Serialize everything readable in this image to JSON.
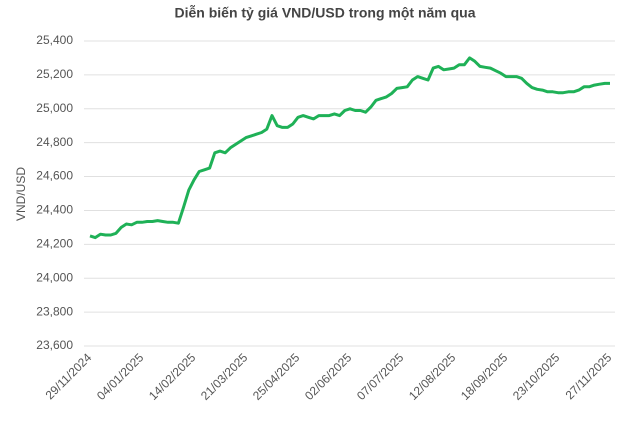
{
  "chart_data": {
    "type": "line",
    "title": "Diễn biến tỷ giá VND/USD trong một năm qua",
    "ylabel": "VND/USD",
    "categories": [
      "29/11/2024",
      null,
      null,
      null,
      null,
      null,
      null,
      null,
      null,
      null,
      "04/01/2025",
      null,
      null,
      null,
      null,
      null,
      null,
      null,
      null,
      null,
      "14/02/2025",
      null,
      null,
      null,
      null,
      null,
      null,
      null,
      null,
      null,
      "21/03/2025",
      null,
      null,
      null,
      null,
      null,
      null,
      null,
      null,
      null,
      "25/04/2025",
      null,
      null,
      null,
      null,
      null,
      null,
      null,
      null,
      null,
      "02/06/2025",
      null,
      null,
      null,
      null,
      null,
      null,
      null,
      null,
      null,
      "07/07/2025",
      null,
      null,
      null,
      null,
      null,
      null,
      null,
      null,
      null,
      "12/08/2025",
      null,
      null,
      null,
      null,
      null,
      null,
      null,
      null,
      null,
      "18/09/2025",
      null,
      null,
      null,
      null,
      null,
      null,
      null,
      null,
      null,
      "23/10/2025",
      null,
      null,
      null,
      null,
      null,
      null,
      null,
      null,
      null,
      "27/11/2025"
    ],
    "values": [
      24250,
      24240,
      24260,
      24255,
      24255,
      24265,
      24300,
      24320,
      24315,
      24330,
      24330,
      24335,
      24335,
      24340,
      24335,
      24330,
      24330,
      24325,
      24420,
      24520,
      24580,
      24630,
      24640,
      24650,
      24740,
      24750,
      24740,
      24770,
      24790,
      24810,
      24830,
      24840,
      24850,
      24860,
      24880,
      24960,
      24900,
      24890,
      24890,
      24910,
      24950,
      24960,
      24950,
      24940,
      24960,
      24960,
      24960,
      24970,
      24960,
      24990,
      25000,
      24990,
      24990,
      24980,
      25010,
      25050,
      25060,
      25070,
      25090,
      25120,
      25125,
      25130,
      25170,
      25190,
      25180,
      25170,
      25240,
      25250,
      25230,
      25235,
      25240,
      25260,
      25260,
      25300,
      25280,
      25250,
      25245,
      25240,
      25225,
      25210,
      25190,
      25190,
      25190,
      25180,
      25150,
      25125,
      25115,
      25110,
      25100,
      25100,
      25095,
      25095,
      25100,
      25100,
      25110,
      25130,
      25130,
      25140,
      25145,
      25150,
      25150
    ],
    "color": "#1fb157",
    "ylim": [
      23600,
      25400
    ],
    "yticks": [
      {
        "value": 23600,
        "label": "23,600"
      },
      {
        "value": 23800,
        "label": "23,800"
      },
      {
        "value": 24000,
        "label": "24,000"
      },
      {
        "value": 24200,
        "label": "24,200"
      },
      {
        "value": 24400,
        "label": "24,400"
      },
      {
        "value": 24600,
        "label": "24,600"
      },
      {
        "value": 24800,
        "label": "24,800"
      },
      {
        "value": 25000,
        "label": "25,000"
      },
      {
        "value": 25200,
        "label": "25,200"
      },
      {
        "value": 25400,
        "label": "25,400"
      }
    ],
    "grid": true
  }
}
